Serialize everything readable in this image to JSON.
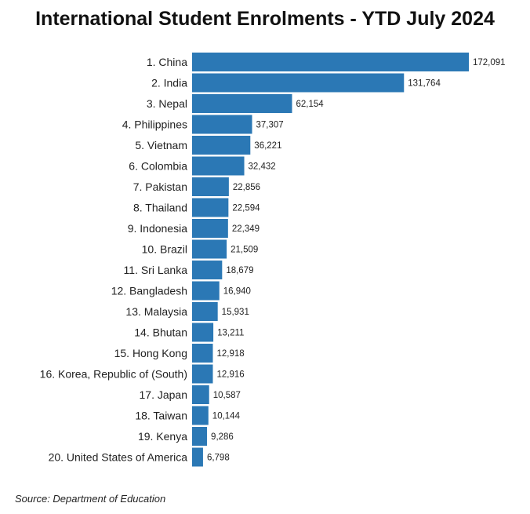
{
  "chart_data": {
    "type": "bar",
    "orientation": "horizontal",
    "title": "International Student Enrolments - YTD July 2024",
    "categories": [
      "1. China",
      "2. India",
      "3. Nepal",
      "4. Philippines",
      "5. Vietnam",
      "6. Colombia",
      "7. Pakistan",
      "8. Thailand",
      "9. Indonesia",
      "10. Brazil",
      "11. Sri Lanka",
      "12. Bangladesh",
      "13. Malaysia",
      "14. Bhutan",
      "15. Hong Kong",
      "16. Korea, Republic of (South)",
      "17. Japan",
      "18. Taiwan",
      "19. Kenya",
      "20. United States of America"
    ],
    "values": [
      172091,
      131764,
      62154,
      37307,
      36221,
      32432,
      22856,
      22594,
      22349,
      21509,
      18679,
      16940,
      15931,
      13211,
      12918,
      12916,
      10587,
      10144,
      9286,
      6798
    ],
    "value_labels": [
      "172,091",
      "131,764",
      "62,154",
      "37,307",
      "36,221",
      "32,432",
      "22,856",
      "22,594",
      "22,349",
      "21,509",
      "18,679",
      "16,940",
      "15,931",
      "13,211",
      "12,918",
      "12,916",
      "10,587",
      "10,144",
      "9,286",
      "6,798"
    ],
    "xlim": [
      0,
      172091
    ],
    "xlabel": "",
    "ylabel": "",
    "grid": false,
    "bar_color": "#2b78b5",
    "source": "Source: Department of Education"
  }
}
